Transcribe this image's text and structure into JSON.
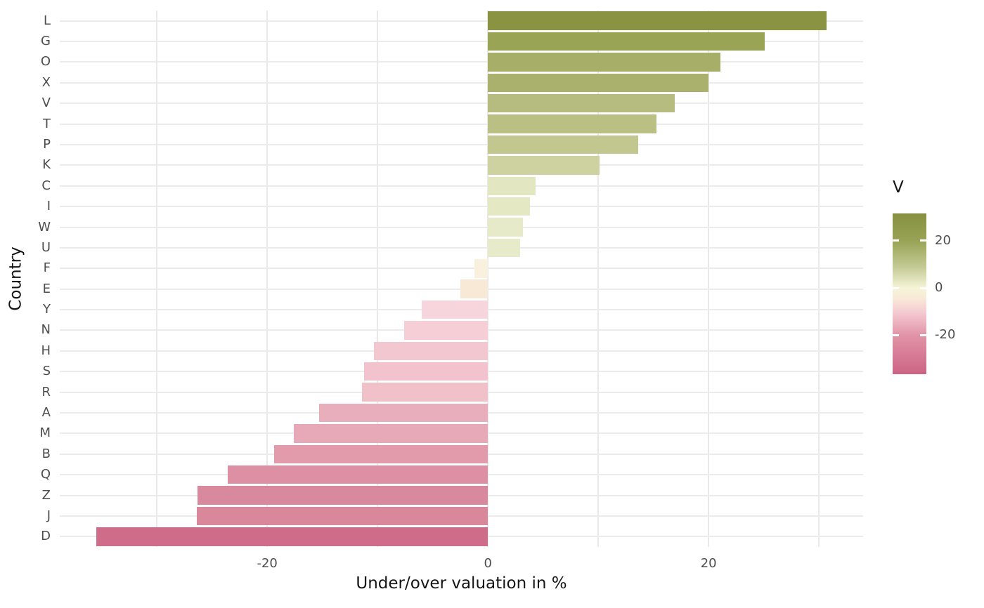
{
  "chart_data": {
    "type": "bar",
    "orientation": "horizontal",
    "xlabel": "Under/over valuation in %",
    "ylabel": "Country",
    "categories": [
      "L",
      "G",
      "O",
      "X",
      "V",
      "T",
      "P",
      "K",
      "C",
      "I",
      "W",
      "U",
      "F",
      "E",
      "Y",
      "N",
      "H",
      "S",
      "R",
      "A",
      "M",
      "B",
      "Q",
      "Z",
      "J",
      "D"
    ],
    "values": [
      30.7,
      25.1,
      21.1,
      20.0,
      16.9,
      15.3,
      13.6,
      10.1,
      4.3,
      3.8,
      3.2,
      2.9,
      -1.2,
      -2.5,
      -6.0,
      -7.6,
      -10.3,
      -11.2,
      -11.4,
      -15.3,
      -17.6,
      -19.4,
      -23.6,
      -26.3,
      -26.4,
      -35.5
    ],
    "bar_colors": [
      "#8a9342",
      "#9aa455",
      "#a6ae68",
      "#a9b16c",
      "#b6bc80",
      "#bac083",
      "#c2c790",
      "#cdd2a0",
      "#e3e7c1",
      "#e4e9c4",
      "#e6eac8",
      "#e7ebca",
      "#f9f1de",
      "#f8e9d6",
      "#f6d5dc",
      "#f5ced6",
      "#f3c7d0",
      "#f2c3cc",
      "#f1c1ca",
      "#e9aebb",
      "#e7a9b7",
      "#e29baa",
      "#dd90a3",
      "#d9899d",
      "#d9889c",
      "#ce6c8a"
    ],
    "xlim": [
      -38.8,
      34.0
    ],
    "x_ticks": [
      {
        "value": -20,
        "label": "-20"
      },
      {
        "value": 0,
        "label": "0"
      },
      {
        "value": 20,
        "label": "20"
      }
    ],
    "x_gridlines": [
      -30,
      -20,
      -10,
      0,
      10,
      20,
      30
    ],
    "grid_on": true,
    "grid_color": "#e9e9e9",
    "background": "#ffffff",
    "bar_height_fraction": 0.9,
    "legend": {
      "title": "V",
      "position": "right",
      "range": [
        -36.5,
        31.5
      ],
      "ticks": [
        {
          "value": 20,
          "label": "20"
        },
        {
          "value": 0,
          "label": "0"
        },
        {
          "value": -20,
          "label": "-20"
        }
      ],
      "gradient": [
        {
          "at": 0,
          "color": "#869040"
        },
        {
          "at": 16.9,
          "color": "#98a355"
        },
        {
          "at": 33,
          "color": "#c2c993"
        },
        {
          "at": 46.3,
          "color": "#f6f4d8"
        },
        {
          "at": 53,
          "color": "#f8e9d8"
        },
        {
          "at": 62,
          "color": "#f4c9d1"
        },
        {
          "at": 75.7,
          "color": "#e194a7"
        },
        {
          "at": 100,
          "color": "#cc6485"
        }
      ]
    },
    "tick_label_color": "#4d4d4d",
    "title_color": "#141414"
  }
}
